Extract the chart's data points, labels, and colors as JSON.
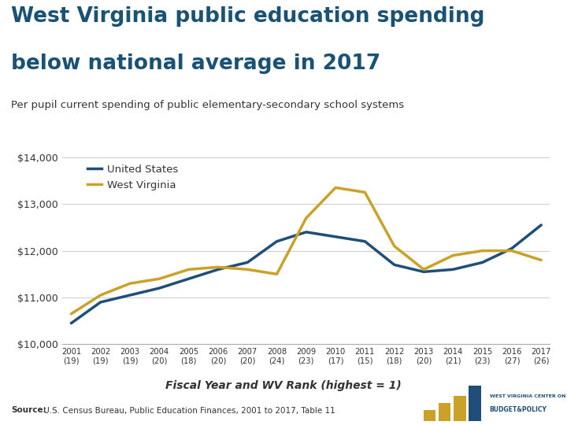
{
  "years": [
    2001,
    2002,
    2003,
    2004,
    2005,
    2006,
    2007,
    2008,
    2009,
    2010,
    2011,
    2012,
    2013,
    2014,
    2015,
    2016,
    2017
  ],
  "wv_ranks": [
    19,
    19,
    19,
    20,
    18,
    20,
    20,
    24,
    23,
    17,
    15,
    18,
    20,
    21,
    23,
    27,
    26
  ],
  "us_values": [
    10450,
    10900,
    11050,
    11200,
    11400,
    11600,
    11750,
    12200,
    12400,
    12300,
    12200,
    11700,
    11550,
    11600,
    11750,
    12050,
    12550
  ],
  "wv_values": [
    10650,
    11050,
    11300,
    11400,
    11600,
    11650,
    11600,
    11500,
    12700,
    13350,
    13250,
    12100,
    11600,
    11900,
    12000,
    12000,
    11800
  ],
  "us_color": "#1F4E79",
  "wv_color": "#C9A227",
  "title_line1": "West Virginia public education spending",
  "title_line2": "below national average in 2017",
  "subtitle": "Per pupil current spending of public elementary-secondary school systems",
  "xlabel": "Fiscal Year and WV Rank (highest = 1)",
  "source_bold": "Source:",
  "source_rest": " U.S. Census Bureau, Public Education Finances, 2001 to 2017, Table 11",
  "ylim": [
    10000,
    14000
  ],
  "yticks": [
    10000,
    11000,
    12000,
    13000,
    14000
  ],
  "title_color": "#1A5276",
  "subtitle_color": "#333333",
  "bg_color": "#FFFFFF",
  "us_label": "United States",
  "wv_label": "West Virginia",
  "linewidth": 2.5,
  "logo_bar_color": "#C9A227",
  "logo_bar_color2": "#1F4E79"
}
